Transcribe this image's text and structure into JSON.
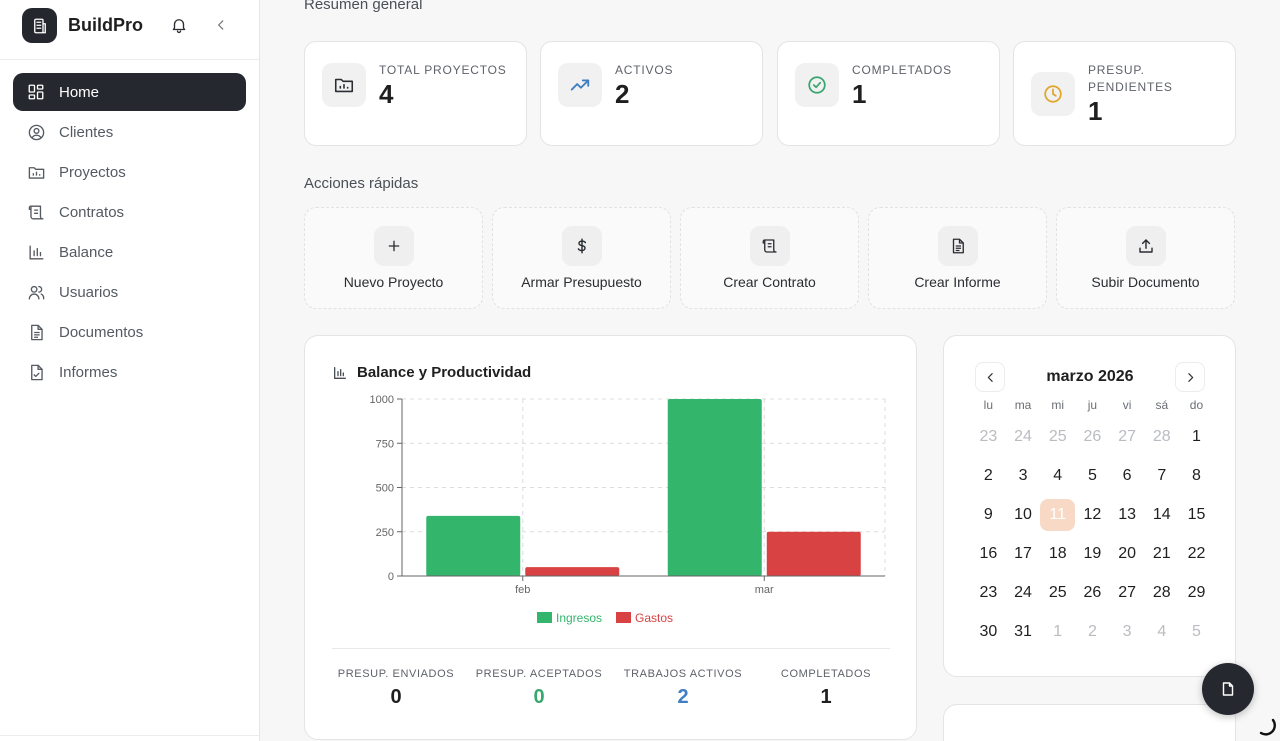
{
  "app": {
    "name": "BuildPro"
  },
  "sidebar": {
    "items": [
      {
        "label": "Home",
        "icon": "dashboard-icon",
        "active": true
      },
      {
        "label": "Clientes",
        "icon": "user-circle-icon"
      },
      {
        "label": "Proyectos",
        "icon": "folder-icon"
      },
      {
        "label": "Contratos",
        "icon": "scroll-icon"
      },
      {
        "label": "Balance",
        "icon": "bar-chart-icon"
      },
      {
        "label": "Usuarios",
        "icon": "users-icon"
      },
      {
        "label": "Documentos",
        "icon": "document-icon"
      },
      {
        "label": "Informes",
        "icon": "report-icon"
      }
    ]
  },
  "overview": {
    "title": "Resumen general",
    "stats": [
      {
        "label": "TOTAL PROYECTOS",
        "value": "4",
        "icon": "folder-icon"
      },
      {
        "label": "ACTIVOS",
        "value": "2",
        "icon": "trending-up-icon"
      },
      {
        "label": "COMPLETADOS",
        "value": "1",
        "icon": "check-circle-icon"
      },
      {
        "label": "PRESUP. PENDIENTES",
        "value": "1",
        "icon": "clock-icon"
      }
    ]
  },
  "quick_actions": {
    "title": "Acciones rápidas",
    "items": [
      {
        "label": "Nuevo Proyecto",
        "icon": "plus-icon"
      },
      {
        "label": "Armar Presupuesto",
        "icon": "dollar-icon"
      },
      {
        "label": "Crear Contrato",
        "icon": "scroll-icon"
      },
      {
        "label": "Crear Informe",
        "icon": "document-icon"
      },
      {
        "label": "Subir Documento",
        "icon": "upload-icon"
      }
    ]
  },
  "chart_card": {
    "title": "Balance y Productividad",
    "summary": [
      {
        "label": "PRESUP. ENVIADOS",
        "value": "0",
        "color": "#1f1f1f"
      },
      {
        "label": "PRESUP. ACEPTADOS",
        "value": "0",
        "color": "#3aa66f"
      },
      {
        "label": "TRABAJOS ACTIVOS",
        "value": "2",
        "color": "#3f7fc1"
      },
      {
        "label": "COMPLETADOS",
        "value": "1",
        "color": "#1f1f1f"
      }
    ]
  },
  "chart_data": {
    "type": "bar",
    "categories": [
      "feb",
      "mar"
    ],
    "series": [
      {
        "name": "Ingresos",
        "values": [
          340,
          1000
        ],
        "color": "#33b56c"
      },
      {
        "name": "Gastos",
        "values": [
          50,
          250
        ],
        "color": "#d84242"
      }
    ],
    "ylim": [
      0,
      1000
    ],
    "yticks": [
      0,
      250,
      500,
      750,
      1000
    ],
    "grid": true,
    "legend": "bottom"
  },
  "calendar": {
    "title": "marzo 2026",
    "dows": [
      "lu",
      "ma",
      "mi",
      "ju",
      "vi",
      "sá",
      "do"
    ],
    "weeks": [
      [
        "23",
        "24",
        "25",
        "26",
        "27",
        "28",
        "1"
      ],
      [
        "2",
        "3",
        "4",
        "5",
        "6",
        "7",
        "8"
      ],
      [
        "9",
        "10",
        "11",
        "12",
        "13",
        "14",
        "15"
      ],
      [
        "16",
        "17",
        "18",
        "19",
        "20",
        "21",
        "22"
      ],
      [
        "23",
        "24",
        "25",
        "26",
        "27",
        "28",
        "29"
      ],
      [
        "30",
        "31",
        "1",
        "2",
        "3",
        "4",
        "5"
      ]
    ],
    "muted": [
      [
        0,
        0
      ],
      [
        0,
        1
      ],
      [
        0,
        2
      ],
      [
        0,
        3
      ],
      [
        0,
        4
      ],
      [
        0,
        5
      ],
      [
        5,
        2
      ],
      [
        5,
        3
      ],
      [
        5,
        4
      ],
      [
        5,
        5
      ],
      [
        5,
        6
      ]
    ],
    "today": [
      2,
      2
    ]
  }
}
